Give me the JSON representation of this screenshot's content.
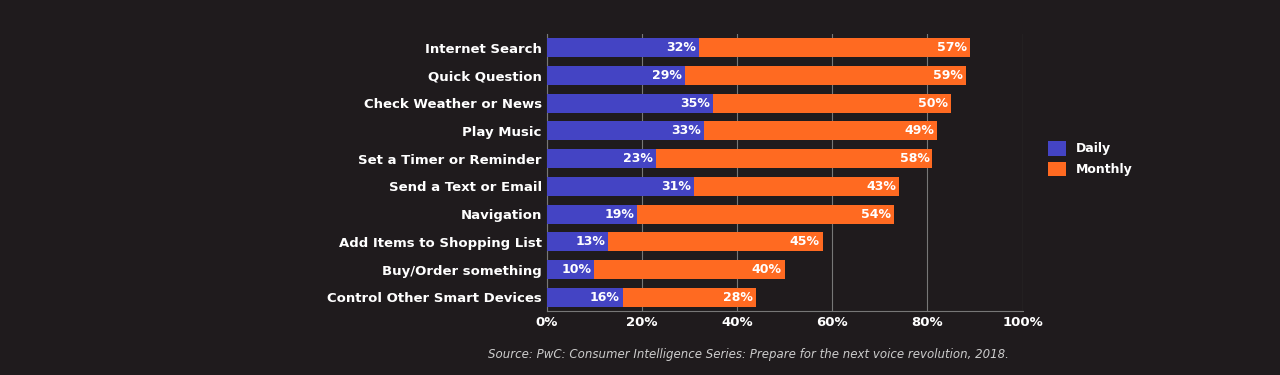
{
  "chart_data": {
    "type": "bar",
    "orientation": "horizontal",
    "stacked": true,
    "categories": [
      "Internet Search",
      "Quick Question",
      "Check Weather or News",
      "Play Music",
      "Set a Timer or Reminder",
      "Send a Text or Email",
      "Navigation",
      "Add Items to Shopping List",
      "Buy/Order something",
      "Control Other Smart Devices"
    ],
    "series": [
      {
        "name": "Daily",
        "color": "#4444c4",
        "values": [
          32,
          29,
          35,
          33,
          23,
          31,
          19,
          13,
          10,
          16
        ],
        "value_labels": [
          "32%",
          "29%",
          "35%",
          "33%",
          "23%",
          "31%",
          "19%",
          "13%",
          "10%",
          "16%"
        ]
      },
      {
        "name": "Monthly",
        "color": "#ff6a21",
        "values": [
          57,
          59,
          50,
          49,
          58,
          43,
          54,
          45,
          40,
          28
        ],
        "value_labels": [
          "57%",
          "59%",
          "50%",
          "49%",
          "58%",
          "43%",
          "54%",
          "45%",
          "40%",
          "28%"
        ]
      }
    ],
    "xlim": [
      0,
      100
    ],
    "xticks": [
      {
        "value": 0,
        "label": "0%"
      },
      {
        "value": 20,
        "label": "20%"
      },
      {
        "value": 40,
        "label": "40%"
      },
      {
        "value": 60,
        "label": "60%"
      },
      {
        "value": 80,
        "label": "80%"
      },
      {
        "value": 100,
        "label": "100%"
      }
    ],
    "grid": true,
    "data_labels": true,
    "legend": "center left",
    "annotations": [
      "Source: PwC: Consumer Intelligence Series: Prepare for the next voice revolution, 2018."
    ]
  }
}
